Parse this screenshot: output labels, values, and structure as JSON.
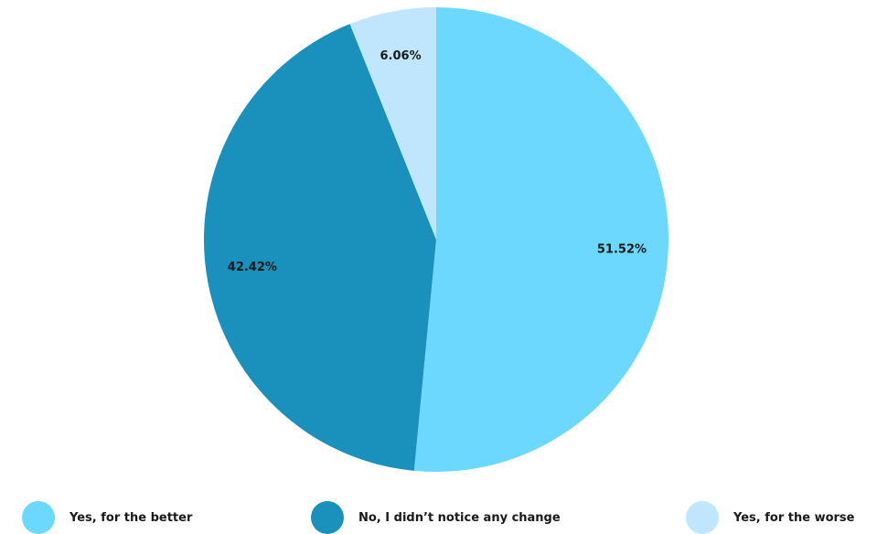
{
  "chart_data": {
    "type": "pie",
    "categories": [
      "Yes, for the better",
      "No, I didn't notice any change",
      "Yes, for the worse"
    ],
    "values": [
      51.52,
      42.42,
      6.06
    ],
    "value_labels": [
      "51.52%",
      "42.42%",
      "6.06%"
    ],
    "colors": [
      "#6dd8fd",
      "#1a90bc",
      "#bfe6fc"
    ],
    "title": "",
    "legend_position": "bottom"
  },
  "legend": {
    "items": [
      {
        "label": "Yes, for the better",
        "color": "#6dd8fd"
      },
      {
        "label": "No, I didn’t notice any change",
        "color": "#1a90bc"
      },
      {
        "label": "Yes, for the worse",
        "color": "#bfe6fc"
      }
    ]
  }
}
